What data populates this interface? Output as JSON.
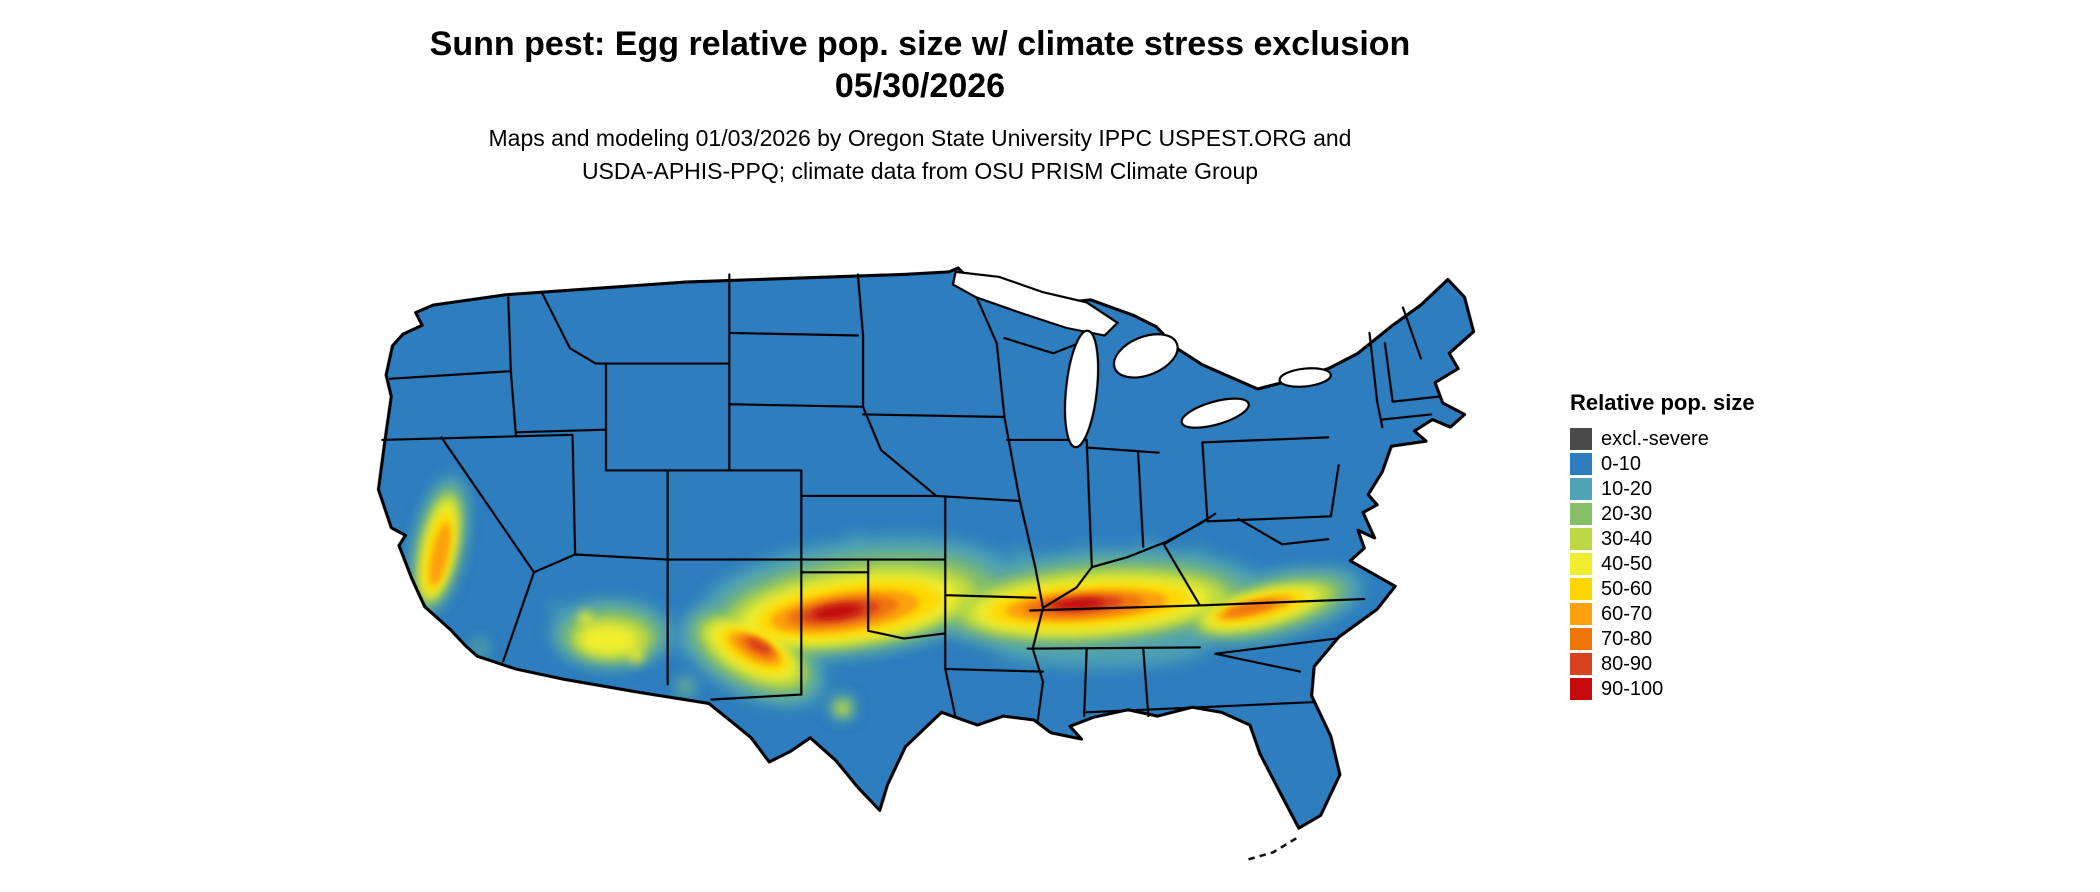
{
  "header": {
    "title_line1": "Sunn pest: Egg relative pop. size w/ climate stress exclusion",
    "title_line2": "05/30/2026",
    "subtitle_line1": "Maps and modeling 01/03/2026 by Oregon State University IPPC USPEST.ORG and",
    "subtitle_line2": "USDA-APHIS-PPQ; climate data from OSU PRISM Climate Group"
  },
  "legend": {
    "title": "Relative pop. size",
    "items": [
      {
        "label": "excl.-severe",
        "color": "#4a4a4a"
      },
      {
        "label": "0-10",
        "color": "#2d7dbf"
      },
      {
        "label": "10-20",
        "color": "#4fa3b4"
      },
      {
        "label": "20-30",
        "color": "#86bf68"
      },
      {
        "label": "30-40",
        "color": "#bcd943"
      },
      {
        "label": "40-50",
        "color": "#f0ee2e"
      },
      {
        "label": "50-60",
        "color": "#ffd500"
      },
      {
        "label": "60-70",
        "color": "#fca00d"
      },
      {
        "label": "70-80",
        "color": "#f07508"
      },
      {
        "label": "80-90",
        "color": "#d8421f"
      },
      {
        "label": "90-100",
        "color": "#c40a0a"
      }
    ]
  },
  "chart_data": {
    "type": "heatmap",
    "title": "Sunn pest: Egg relative pop. size w/ climate stress exclusion",
    "date": "05/30/2026",
    "region": "Continental United States choropleth raster with state borders",
    "legend_title": "Relative pop. size",
    "classes": [
      "excl.-severe",
      "0-10",
      "10-20",
      "20-30",
      "30-40",
      "40-50",
      "50-60",
      "60-70",
      "70-80",
      "80-90",
      "90-100"
    ],
    "class_colors": [
      "#4a4a4a",
      "#2d7dbf",
      "#4fa3b4",
      "#86bf68",
      "#bcd943",
      "#f0ee2e",
      "#ffd500",
      "#fca00d",
      "#f07508",
      "#d8421f",
      "#c40a0a"
    ],
    "dominant_class": "0-10",
    "hotspot_regions": [
      "California Central Valley (40-90)",
      "scattered southern Arizona (20-50)",
      "southern New Mexico and Trans-Pecos Texas (50-90)",
      "Texas Panhandle through Oklahoma and north-central Texas (60-100)",
      "Arkansas mid-South corridor (30-60)",
      "Tennessee / Kentucky border belt (60-100)",
      "piedmont band into the Carolinas and Virginia (40-70)"
    ]
  }
}
